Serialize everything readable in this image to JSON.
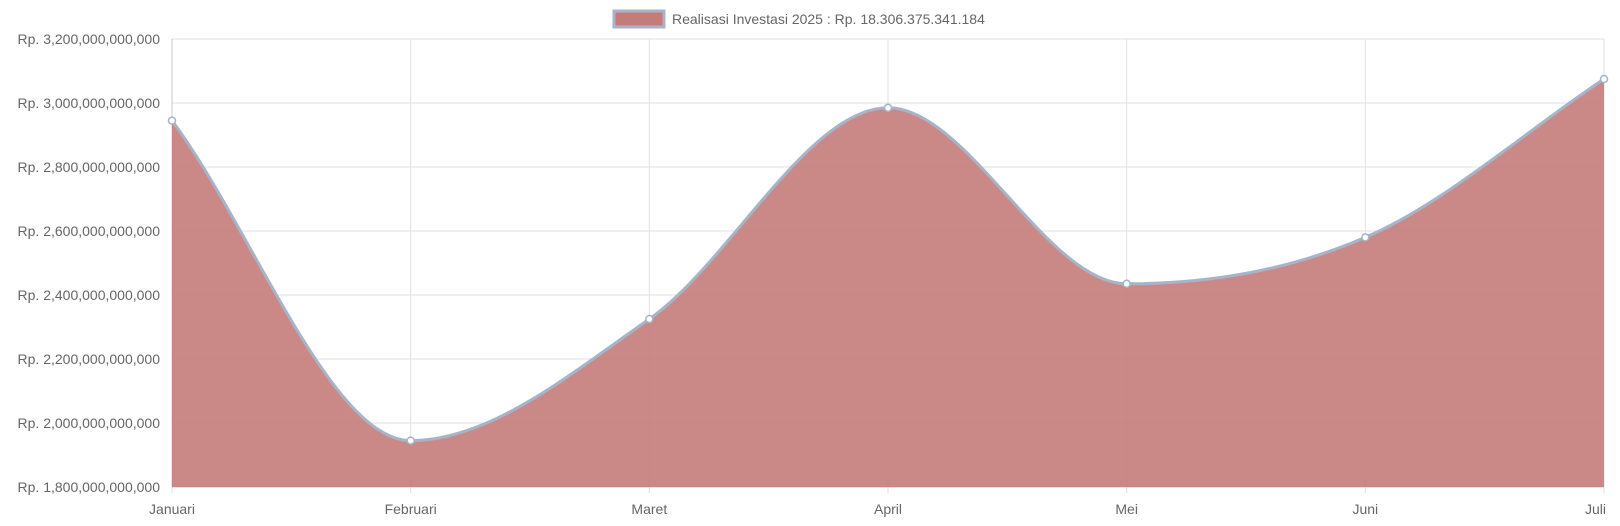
{
  "chart_data": {
    "type": "area",
    "categories": [
      "Januari",
      "Februari",
      "Maret",
      "April",
      "Mei",
      "Juni",
      "Juli"
    ],
    "series": [
      {
        "name": "Realisasi Investasi 2025 : Rp. 18.306.375.341.184",
        "values": [
          2945000000000,
          1945000000000,
          2325000000000,
          2985000000000,
          2435000000000,
          2580000000000,
          3075000000000
        ]
      }
    ],
    "ylim": [
      1800000000000,
      3200000000000
    ],
    "y_ticks": [
      1800000000000,
      2000000000000,
      2200000000000,
      2400000000000,
      2600000000000,
      2800000000000,
      3000000000000,
      3200000000000
    ],
    "y_tick_labels": [
      "Rp. 1,800,000,000,000",
      "Rp. 2,000,000,000,000",
      "Rp. 2,200,000,000,000",
      "Rp. 2,400,000,000,000",
      "Rp. 2,600,000,000,000",
      "Rp. 2,800,000,000,000",
      "Rp. 3,000,000,000,000",
      "Rp. 3,200,000,000,000"
    ],
    "legend_position": "top-center",
    "grid": true,
    "smooth": true,
    "colors": {
      "fill": "#c47c79",
      "line": "#a7b4c8",
      "grid": "#e2e2e2",
      "axis": "#c8c8c8"
    }
  }
}
